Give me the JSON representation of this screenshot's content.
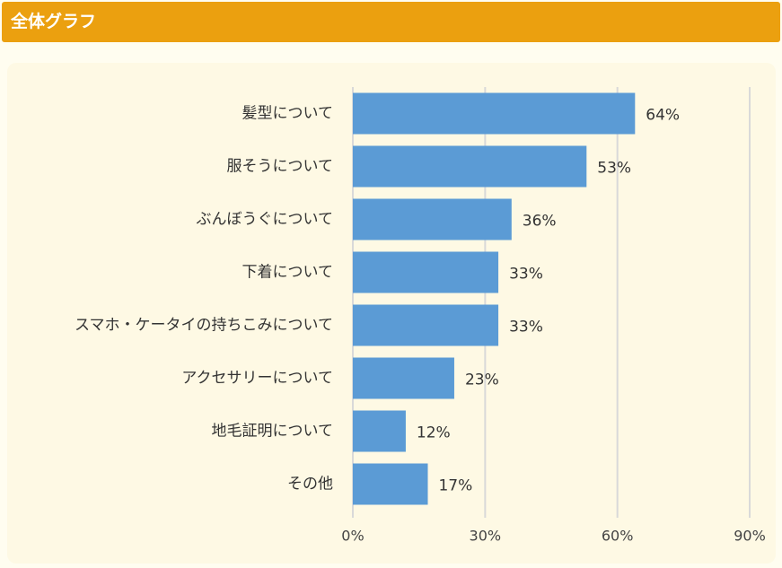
{
  "header": {
    "title": "全体グラフ"
  },
  "chart_data": {
    "type": "bar",
    "orientation": "horizontal",
    "categories": [
      "髪型について",
      "服そうについて",
      "ぶんぼうぐについて",
      "下着について",
      "スマホ・ケータイの持ちこみについて",
      "アクセサリーについて",
      "地毛証明について",
      "その他"
    ],
    "values": [
      64,
      53,
      36,
      33,
      33,
      23,
      12,
      17
    ],
    "value_labels": [
      "64%",
      "53%",
      "36%",
      "33%",
      "33%",
      "23%",
      "12%",
      "17%"
    ],
    "xlim": [
      0,
      90
    ],
    "xticks": [
      0,
      30,
      60,
      90
    ],
    "xtick_labels": [
      "0%",
      "30%",
      "60%",
      "90%"
    ],
    "grid": true,
    "colors": {
      "bar": "#5b9bd5",
      "grid": "#d9d9d9",
      "header": "#eba00f"
    }
  }
}
